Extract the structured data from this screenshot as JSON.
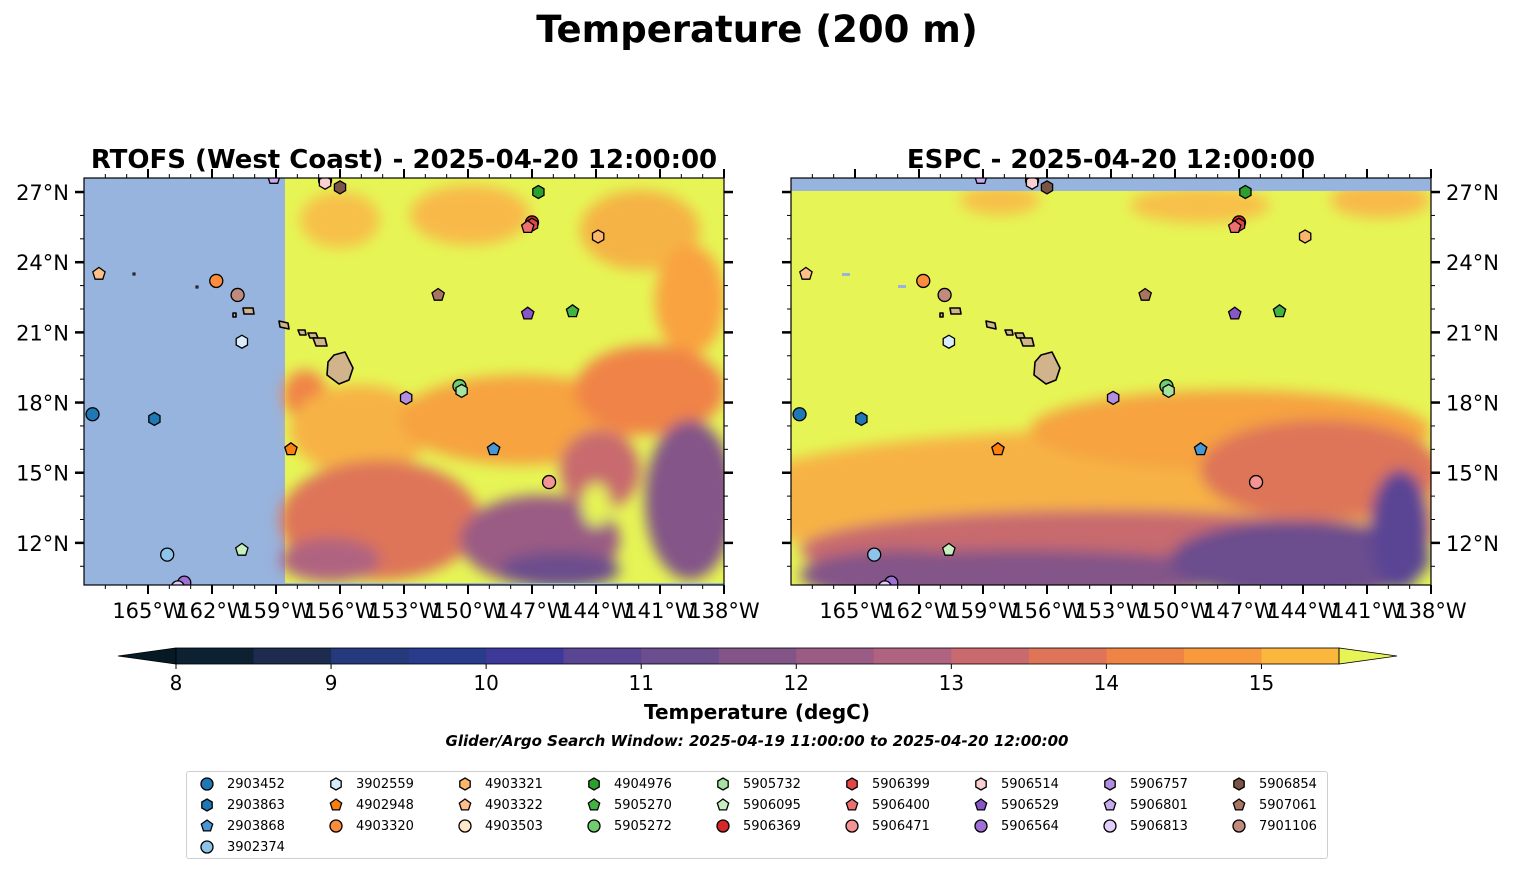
{
  "figure": {
    "title": "Temperature (200 m)",
    "colorbar_label": "Temperature (degC)",
    "search_window": "Glider/Argo Search Window: 2025-04-19 11:00:00 to 2025-04-20 12:00:00"
  },
  "chart_data": {
    "type": "heatmap",
    "variable": "Temperature",
    "units": "degC",
    "depth": "200 m",
    "colorbar": {
      "ticks": [
        8,
        9,
        10,
        11,
        12,
        13,
        14,
        15
      ],
      "ticklabels": [
        "8",
        "9",
        "10",
        "11",
        "12",
        "13",
        "14",
        "15"
      ],
      "levels": [
        8,
        8.5,
        9,
        9.5,
        10,
        10.5,
        11,
        11.5,
        12,
        12.5,
        13,
        13.5,
        14,
        14.5,
        15,
        15.5
      ],
      "extend": "both",
      "colors": [
        "#0c2132",
        "#1c2b4e",
        "#243a7d",
        "#2a3a8c",
        "#3e3999",
        "#5a4494",
        "#6c4d8d",
        "#835488",
        "#9a5b84",
        "#b06380",
        "#c86a6e",
        "#de7458",
        "#f08346",
        "#f79a3d",
        "#fbb63e",
        "#f7d749",
        "#e6f555"
      ],
      "over_color": "#e6f555",
      "under_color": "#061a26"
    },
    "panels": [
      {
        "title": "RTOFS (West Coast) - 2025-04-20 12:00:00",
        "lon_range": [
          -168,
          -138
        ],
        "lat_range": [
          10.2,
          27.6
        ],
        "xticks": [
          -165,
          -162,
          -159,
          -156,
          -153,
          -150,
          -147,
          -144,
          -141,
          -138
        ],
        "xticklabels": [
          "165°W",
          "162°W",
          "159°W",
          "156°W",
          "153°W",
          "150°W",
          "147°W",
          "144°W",
          "141°W",
          "138°W"
        ],
        "yticks": [
          12,
          15,
          18,
          21,
          24,
          27
        ],
        "yticklabels": [
          "12°N",
          "15°N",
          "18°N",
          "21°N",
          "24°N",
          "27°N"
        ],
        "ytick_side": "left",
        "nodata_west_of": -158.6
      },
      {
        "title": "ESPC - 2025-04-20 12:00:00",
        "lon_range": [
          -168,
          -138
        ],
        "lat_range": [
          10.2,
          27.6
        ],
        "xticks": [
          -165,
          -162,
          -159,
          -156,
          -153,
          -150,
          -147,
          -144,
          -141,
          -138
        ],
        "xticklabels": [
          "165°W",
          "162°W",
          "159°W",
          "156°W",
          "153°W",
          "150°W",
          "147°W",
          "144°W",
          "141°W",
          "138°W"
        ],
        "yticks": [
          12,
          15,
          18,
          21,
          24,
          27
        ],
        "yticklabels": [
          "12°N",
          "15°N",
          "18°N",
          "21°N",
          "24°N",
          "27°N"
        ],
        "ytick_side": "right",
        "nodata_north_of": 27.1
      }
    ],
    "floats": [
      {
        "id": "2903452",
        "marker": "circle",
        "color": "#1f77b4",
        "lon": -167.6,
        "lat": 17.5
      },
      {
        "id": "2903863",
        "marker": "hexagon",
        "color": "#1f77b4",
        "lon": -164.7,
        "lat": 17.3
      },
      {
        "id": "2903868",
        "marker": "pentagon",
        "color": "#4a95d4",
        "lon": -148.8,
        "lat": 16.0
      },
      {
        "id": "3902374",
        "marker": "circle",
        "color": "#8ec3ea",
        "lon": -164.1,
        "lat": 11.5
      },
      {
        "id": "3902559",
        "marker": "hexagon",
        "color": "#d9ecfa",
        "lon": -160.6,
        "lat": 20.6
      },
      {
        "id": "4902948",
        "marker": "pentagon",
        "color": "#ff7f0e",
        "lon": -158.3,
        "lat": 16.0
      },
      {
        "id": "4903320",
        "marker": "circle",
        "color": "#fd8d3c",
        "lon": -161.8,
        "lat": 23.2
      },
      {
        "id": "4903321",
        "marker": "hexagon",
        "color": "#fdb56c",
        "lon": -143.9,
        "lat": 25.1
      },
      {
        "id": "4903322",
        "marker": "pentagon",
        "color": "#fdc088",
        "lon": -167.3,
        "lat": 23.5
      },
      {
        "id": "4903503",
        "marker": "circle",
        "color": "#fee6c9",
        "lon": -156.7,
        "lat": 27.5
      },
      {
        "id": "4904976",
        "marker": "hexagon",
        "color": "#2ca02c",
        "lon": -146.7,
        "lat": 27.0
      },
      {
        "id": "5905270",
        "marker": "pentagon",
        "color": "#41b441",
        "lon": -145.1,
        "lat": 21.9
      },
      {
        "id": "5905272",
        "marker": "circle",
        "color": "#6fcc6f",
        "lon": -150.4,
        "lat": 18.7
      },
      {
        "id": "5905732",
        "marker": "hexagon",
        "color": "#a7e3a0",
        "lon": -150.3,
        "lat": 18.5
      },
      {
        "id": "5906095",
        "marker": "pentagon",
        "color": "#c7efc0",
        "lon": -160.6,
        "lat": 11.7
      },
      {
        "id": "5906369",
        "marker": "circle",
        "color": "#d62728",
        "lon": -147.0,
        "lat": 25.7
      },
      {
        "id": "5906399",
        "marker": "hexagon",
        "color": "#e34646",
        "lon": -147.0,
        "lat": 25.6
      },
      {
        "id": "5906400",
        "marker": "pentagon",
        "color": "#ee6f6f",
        "lon": -147.2,
        "lat": 25.5
      },
      {
        "id": "5906471",
        "marker": "circle",
        "color": "#f49494",
        "lon": -146.2,
        "lat": 14.6
      },
      {
        "id": "5906514",
        "marker": "hexagon",
        "color": "#fcd0d0",
        "lon": -156.7,
        "lat": 27.4
      },
      {
        "id": "5906529",
        "marker": "pentagon",
        "color": "#8856c9",
        "lon": -147.2,
        "lat": 21.8
      },
      {
        "id": "5906564",
        "marker": "circle",
        "color": "#9e6fd6",
        "lon": -163.3,
        "lat": 10.3
      },
      {
        "id": "5906757",
        "marker": "hexagon",
        "color": "#b28ee0",
        "lon": -152.9,
        "lat": 18.2
      },
      {
        "id": "5906801",
        "marker": "pentagon",
        "color": "#c9a9f0",
        "lon": -159.1,
        "lat": 27.6
      },
      {
        "id": "5906813",
        "marker": "circle",
        "color": "#e3cdfb",
        "lon": -163.6,
        "lat": 10.1
      },
      {
        "id": "5906854",
        "marker": "hexagon",
        "color": "#7a5444",
        "lon": -156.0,
        "lat": 27.2
      },
      {
        "id": "5907061",
        "marker": "pentagon",
        "color": "#a97560",
        "lon": -151.4,
        "lat": 22.6
      },
      {
        "id": "7901106",
        "marker": "circle",
        "color": "#c08a7c",
        "lon": -160.8,
        "lat": 22.6
      }
    ]
  }
}
